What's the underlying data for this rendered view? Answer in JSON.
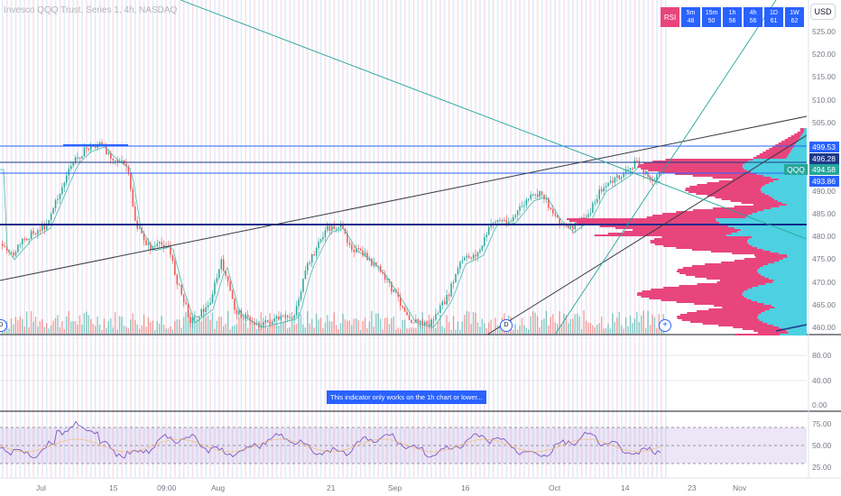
{
  "title": "Invesco QQQ Trust, Series 1, 4h, NASDAQ",
  "toolbar": {
    "rsi_label": "RSI",
    "timeframes": [
      {
        "tf": "5m",
        "val": "48"
      },
      {
        "tf": "15m",
        "val": "50"
      },
      {
        "tf": "1h",
        "val": "56"
      },
      {
        "tf": "4h",
        "val": "56"
      },
      {
        "tf": "1D",
        "val": "61"
      },
      {
        "tf": "1W",
        "val": "62"
      }
    ]
  },
  "currency": "USD",
  "price_axis": [
    "525.00",
    "520.00",
    "515.00",
    "510.00",
    "505.00",
    "490.00",
    "485.00",
    "480.00",
    "475.00",
    "470.00",
    "465.00",
    "460.00"
  ],
  "price_tags": [
    {
      "value": "499.53",
      "color": "#2962ff"
    },
    {
      "value": "496.28",
      "color": "#1e3a8a"
    },
    {
      "value": "494.58",
      "color": "#26a69a"
    },
    {
      "value": "493.86",
      "color": "#2962ff"
    }
  ],
  "symbol_tag": "QQQ",
  "indicator_axis": [
    "80.00",
    "40.00",
    "0.00"
  ],
  "rsi_axis": [
    "75.00",
    "50.00",
    "25.00"
  ],
  "time_axis": [
    "Jul",
    "15",
    "09:00",
    "Aug",
    "21",
    "Sep",
    "16",
    "Oct",
    "14",
    "23",
    "Nov"
  ],
  "notice": "This indicator only works on the 1h chart or lower...",
  "markers": {
    "d": "D",
    "plus": "+"
  },
  "colors": {
    "up": "#26a69a",
    "down": "#ef5350",
    "profile_pink": "#e8457d",
    "profile_cyan": "#4dd0e1",
    "accent": "#2962ff"
  }
}
